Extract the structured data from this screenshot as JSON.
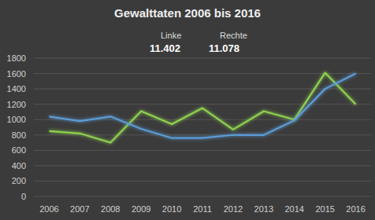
{
  "chart_data": {
    "type": "line",
    "title": "Gewalttaten 2006 bis 2016",
    "categories": [
      "2006",
      "2007",
      "2008",
      "2009",
      "2010",
      "2011",
      "2012",
      "2013",
      "2014",
      "2015",
      "2016"
    ],
    "series": [
      {
        "name": "Linke",
        "color": "#8fd14f",
        "values": [
          850,
          820,
          700,
          1110,
          940,
          1150,
          870,
          1110,
          1000,
          1610,
          1200
        ]
      },
      {
        "name": "Rechte",
        "color": "#5b9bd5",
        "values": [
          1040,
          980,
          1040,
          880,
          760,
          760,
          800,
          800,
          990,
          1400,
          1600
        ]
      }
    ],
    "annotations": [
      {
        "text": "11.402",
        "series": "Linke"
      },
      {
        "text": "11.078",
        "series": "Rechte"
      }
    ],
    "ylim": [
      0,
      1800
    ],
    "yticks": [
      0,
      200,
      400,
      600,
      800,
      1000,
      1200,
      1400,
      1600,
      1800
    ],
    "grid": true,
    "legend": "top"
  }
}
